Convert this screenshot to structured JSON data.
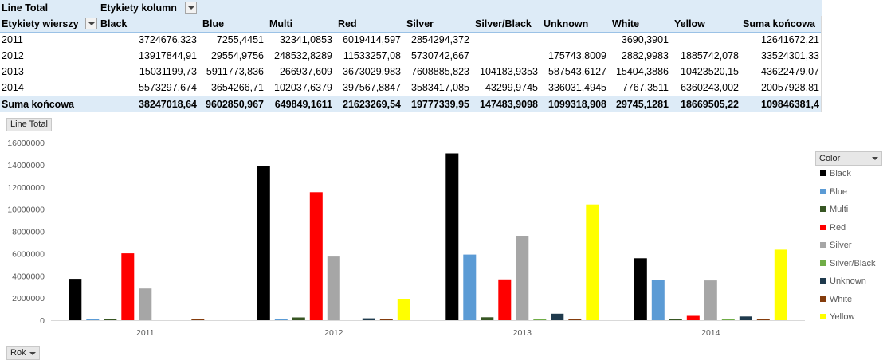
{
  "pivot": {
    "values_label": "Line Total",
    "columns_label": "Etykiety kolumn",
    "rows_label": "Etykiety wierszy",
    "columns": [
      "Black",
      "Blue",
      "Multi",
      "Red",
      "Silver",
      "Silver/Black",
      "Unknown",
      "White",
      "Yellow",
      "Suma końcowa"
    ],
    "rows": [
      {
        "label": "2011",
        "values": [
          "3724676,323",
          "7255,4451",
          "32341,0853",
          "6019414,597",
          "2854294,372",
          "",
          "",
          "3690,3901",
          "",
          "12641672,21"
        ]
      },
      {
        "label": "2012",
        "values": [
          "13917844,91",
          "29554,9756",
          "248532,8289",
          "11533257,08",
          "5730742,667",
          "",
          "175743,8009",
          "2882,9983",
          "1885742,078",
          "33524301,33"
        ]
      },
      {
        "label": "2013",
        "values": [
          "15031199,73",
          "5911773,836",
          "266937,609",
          "3673029,983",
          "7608885,823",
          "104183,9353",
          "587543,6127",
          "15404,3886",
          "10423520,15",
          "43622479,07"
        ]
      },
      {
        "label": "2014",
        "values": [
          "5573297,674",
          "3654266,71",
          "102037,6379",
          "397567,8847",
          "3583417,085",
          "43299,9745",
          "336031,4945",
          "7767,3511",
          "6360243,002",
          "20057928,81"
        ]
      }
    ],
    "total": {
      "label": "Suma końcowa",
      "values": [
        "38247018,64",
        "9602850,967",
        "649849,1611",
        "21623269,54",
        "19777339,95",
        "147483,9098",
        "1099318,908",
        "29745,1281",
        "18669505,22",
        "109846381,4"
      ]
    }
  },
  "chart_buttons": {
    "value_field": "Line Total",
    "axis_field": "Rok",
    "legend_field": "Color"
  },
  "chart_data": {
    "type": "bar",
    "categories": [
      "2011",
      "2012",
      "2013",
      "2014"
    ],
    "ylim": [
      0,
      16000000
    ],
    "yticks": [
      "0",
      "2000000",
      "4000000",
      "6000000",
      "8000000",
      "10000000",
      "12000000",
      "14000000",
      "16000000"
    ],
    "legend_position": "right",
    "series": [
      {
        "name": "Black",
        "color": "#000000",
        "values": [
          3724676.323,
          13917844.91,
          15031199.73,
          5573297.674
        ]
      },
      {
        "name": "Blue",
        "color": "#5b9bd5",
        "values": [
          7255.4451,
          29554.9756,
          5911773.836,
          3654266.71
        ]
      },
      {
        "name": "Multi",
        "color": "#375623",
        "values": [
          32341.0853,
          248532.8289,
          266937.609,
          102037.6379
        ]
      },
      {
        "name": "Red",
        "color": "#ff0000",
        "values": [
          6019414.597,
          11533257.08,
          3673029.983,
          397567.8847
        ]
      },
      {
        "name": "Silver",
        "color": "#a6a6a6",
        "values": [
          2854294.372,
          5730742.667,
          7608885.823,
          3583417.085
        ]
      },
      {
        "name": "Silver/Black",
        "color": "#70ad47",
        "values": [
          0,
          0,
          104183.9353,
          43299.9745
        ]
      },
      {
        "name": "Unknown",
        "color": "#1f3a4d",
        "values": [
          0,
          175743.8009,
          587543.6127,
          336031.4945
        ]
      },
      {
        "name": "White",
        "color": "#843c0c",
        "values": [
          3690.3901,
          2882.9983,
          15404.3886,
          7767.3511
        ]
      },
      {
        "name": "Yellow",
        "color": "#ffff00",
        "values": [
          0,
          1885742.078,
          10423520.15,
          6360243.002
        ]
      }
    ]
  }
}
